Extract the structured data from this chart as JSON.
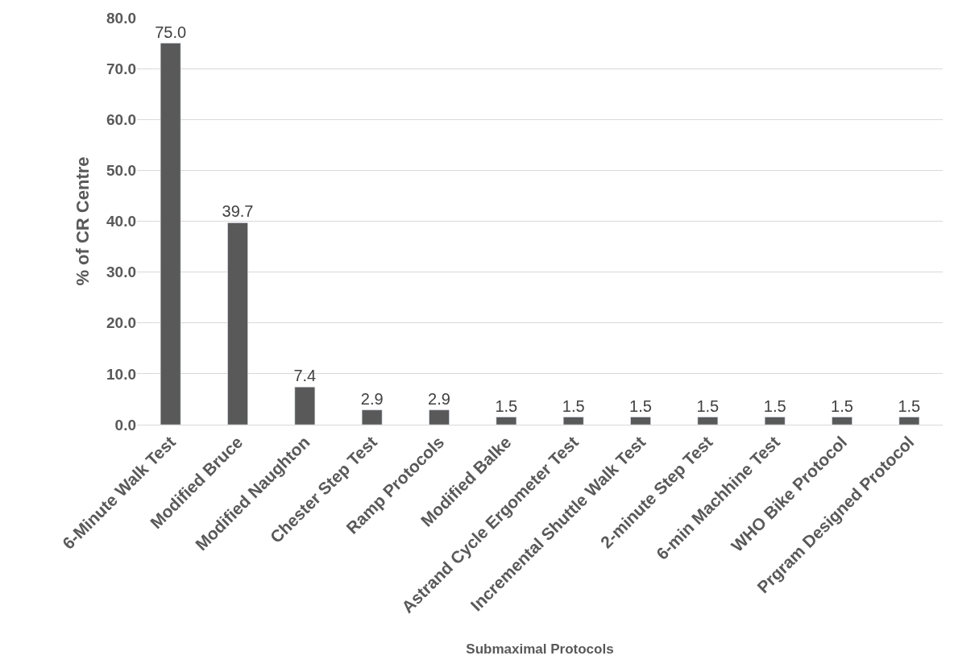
{
  "chart_data": {
    "type": "bar",
    "xlabel": "Submaximal Protocols",
    "ylabel": "% of CR Centre",
    "categories": [
      "6-Minute Walk Test",
      "Modified Bruce",
      "Modified Naughton",
      "Chester Step Test",
      "Ramp Protocols",
      "Modified Balke",
      "Astrand Cycle Ergometer Test",
      "Incremental Shuttle Walk Test",
      "2-minute Step Test",
      "6-min Machhine Test",
      "WHO Bike Protocol",
      "Prgram Designed Protocol"
    ],
    "values": [
      75.0,
      39.7,
      7.4,
      2.9,
      2.9,
      1.5,
      1.5,
      1.5,
      1.5,
      1.5,
      1.5,
      1.5
    ],
    "value_labels": [
      "75.0",
      "39.7",
      "7.4",
      "2.9",
      "2.9",
      "1.5",
      "1.5",
      "1.5",
      "1.5",
      "1.5",
      "1.5",
      "1.5"
    ],
    "color": "#595959",
    "ylim": [
      0,
      80
    ],
    "yticks": [
      {
        "value": 0,
        "label": "0.0"
      },
      {
        "value": 10,
        "label": "10.0"
      },
      {
        "value": 20,
        "label": "20.0"
      },
      {
        "value": 30,
        "label": "30.0"
      },
      {
        "value": 40,
        "label": "40.0"
      },
      {
        "value": 50,
        "label": "50.0"
      },
      {
        "value": 60,
        "label": "60.0"
      },
      {
        "value": 70,
        "label": "70.0"
      },
      {
        "value": 80,
        "label": "80.0"
      }
    ],
    "grid": "y"
  }
}
